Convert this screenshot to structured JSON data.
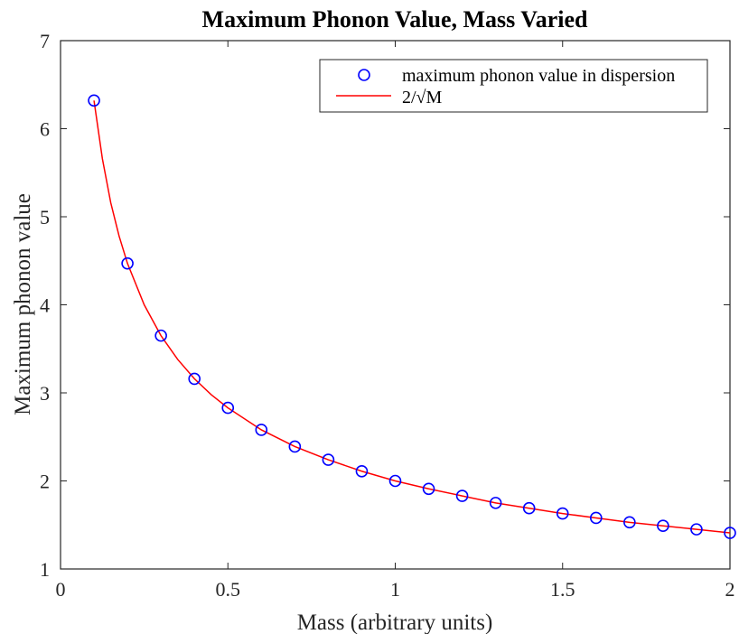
{
  "chart_data": {
    "type": "scatter",
    "title": "Maximum Phonon Value, Mass Varied",
    "xlabel": "Mass (arbitrary units)",
    "ylabel": "Maximum phonon value",
    "xlim": [
      0,
      2
    ],
    "ylim": [
      1,
      7
    ],
    "x_ticks": [
      0,
      0.5,
      1,
      1.5,
      2
    ],
    "x_tick_labels": [
      "0",
      "0.5",
      "1",
      "1.5",
      "2"
    ],
    "y_ticks": [
      1,
      2,
      3,
      4,
      5,
      6,
      7
    ],
    "y_tick_labels": [
      "1",
      "2",
      "3",
      "4",
      "5",
      "6",
      "7"
    ],
    "grid": false,
    "legend_position": "top-right",
    "series": [
      {
        "name": "maximum phonon value in dispersion",
        "kind": "markers",
        "marker": "circle",
        "color": "#0000ff",
        "x": [
          0.1,
          0.2,
          0.3,
          0.4,
          0.5,
          0.6,
          0.7,
          0.8,
          0.9,
          1.0,
          1.1,
          1.2,
          1.3,
          1.4,
          1.5,
          1.6,
          1.7,
          1.8,
          1.9,
          2.0
        ],
        "y": [
          6.32,
          4.47,
          3.65,
          3.16,
          2.83,
          2.58,
          2.39,
          2.24,
          2.11,
          2.0,
          1.91,
          1.83,
          1.75,
          1.69,
          1.63,
          1.58,
          1.53,
          1.49,
          1.45,
          1.41
        ]
      },
      {
        "name": "2/√M",
        "kind": "line",
        "color": "#ff0000",
        "x": [
          0.1,
          0.125,
          0.15,
          0.175,
          0.2,
          0.25,
          0.3,
          0.35,
          0.4,
          0.45,
          0.5,
          0.6,
          0.7,
          0.8,
          0.9,
          1.0,
          1.1,
          1.2,
          1.3,
          1.4,
          1.5,
          1.6,
          1.7,
          1.8,
          1.9,
          2.0
        ],
        "y": [
          6.32,
          5.66,
          5.16,
          4.78,
          4.47,
          4.0,
          3.65,
          3.38,
          3.16,
          2.98,
          2.83,
          2.58,
          2.39,
          2.24,
          2.11,
          2.0,
          1.91,
          1.83,
          1.75,
          1.69,
          1.63,
          1.58,
          1.53,
          1.49,
          1.45,
          1.41
        ]
      }
    ]
  }
}
